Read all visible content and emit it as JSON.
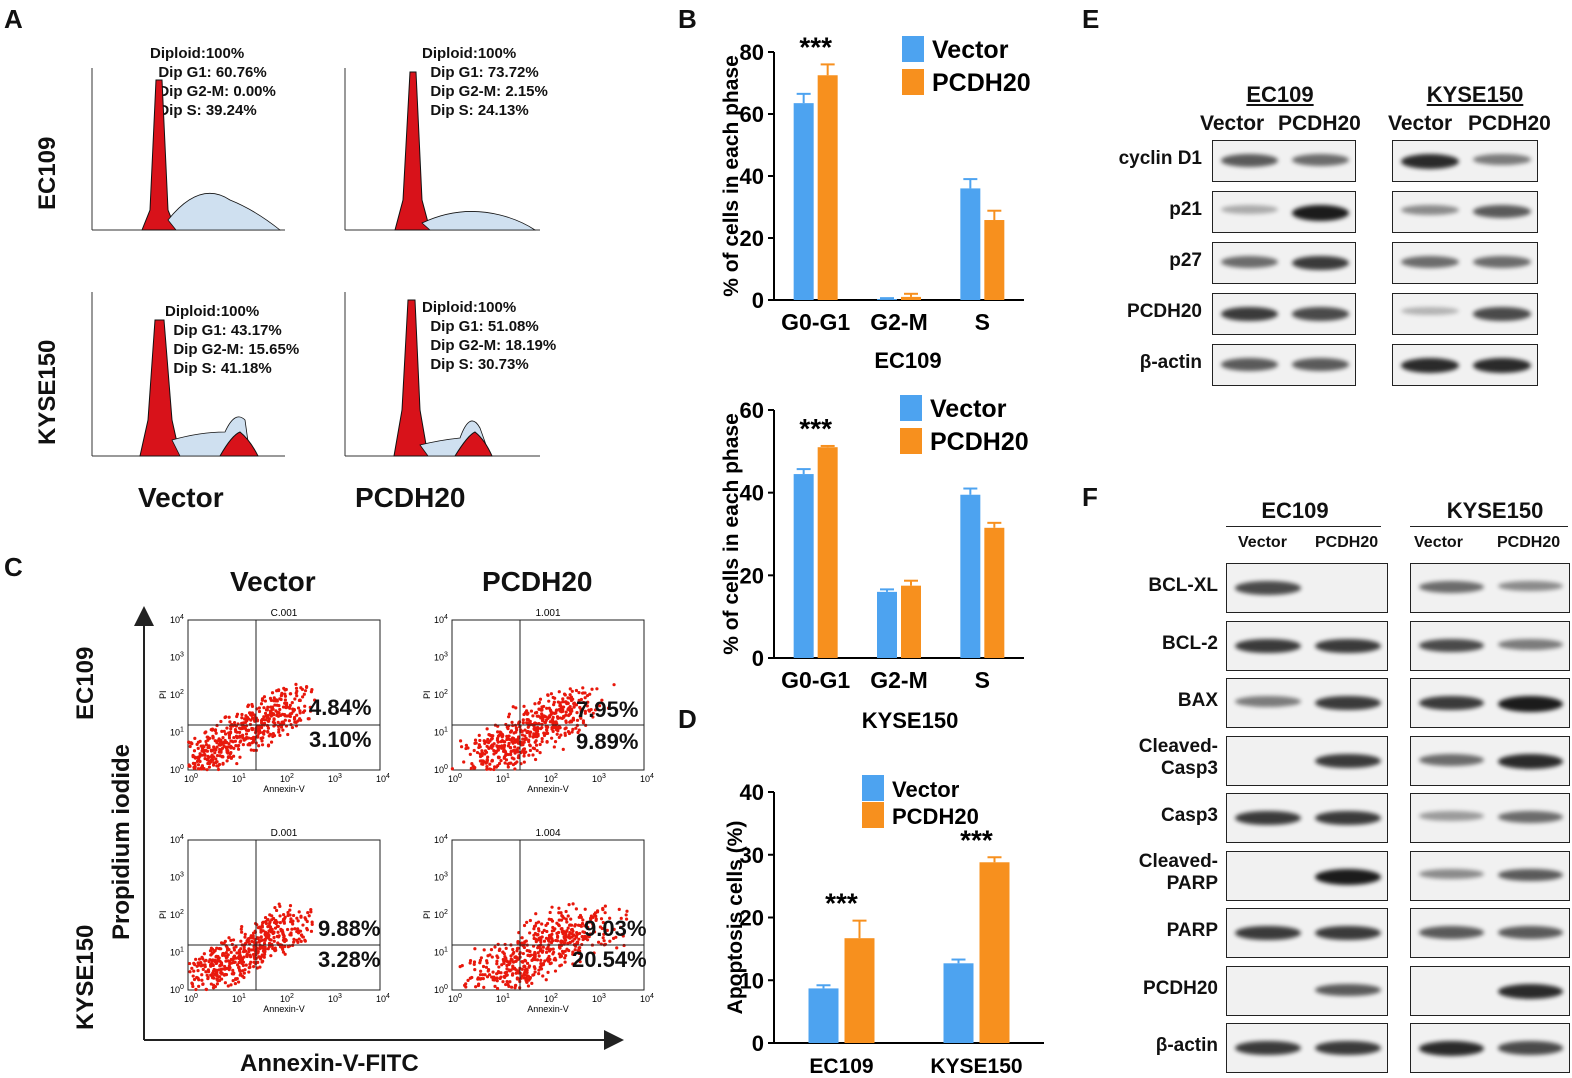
{
  "panels": {
    "A": {
      "letter": "A",
      "row_labels": [
        "EC109",
        "KYSE150"
      ],
      "col_labels": [
        "Vector",
        "PCDH20"
      ],
      "plots": [
        {
          "lines": [
            "Diploid:100%",
            "  Dip G1: 60.76%",
            "  Dip G2-M: 0.00%",
            "  Dip S: 39.24%"
          ]
        },
        {
          "lines": [
            "Diploid:100%",
            "  Dip G1: 73.72%",
            "  Dip G2-M: 2.15%",
            "  Dip S: 24.13%"
          ]
        },
        {
          "lines": [
            "Diploid:100%",
            "  Dip G1: 43.17%",
            "  Dip G2-M: 15.65%",
            "  Dip S: 41.18%"
          ]
        },
        {
          "lines": [
            "Diploid:100%",
            "  Dip G1: 51.08%",
            "  Dip G2-M: 18.19%",
            "  Dip S: 30.73%"
          ]
        }
      ]
    },
    "B": {
      "letter": "B"
    },
    "C": {
      "letter": "C",
      "col_labels": [
        "Vector",
        "PCDH20"
      ],
      "row_labels": [
        "EC109",
        "KYSE150"
      ],
      "y_axis": "Propidium iodide",
      "x_axis": "Annexin-V-FITC",
      "plots": [
        {
          "id": "C.001",
          "upper": "4.84%",
          "lower": "3.10%"
        },
        {
          "id": "1.001",
          "upper": "7.95%",
          "lower": "9.89%"
        },
        {
          "id": "D.001",
          "upper": "9.88%",
          "lower": "3.28%"
        },
        {
          "id": "1.004",
          "upper": "9.03%",
          "lower": "20.54%"
        }
      ],
      "plot_axis_x": "Annexin-V",
      "plot_axis_y": "PI"
    },
    "D": {
      "letter": "D"
    },
    "E": {
      "letter": "E",
      "cell_lines": [
        "EC109",
        "KYSE150"
      ],
      "lanes": [
        "Vector",
        "PCDH20"
      ],
      "proteins": [
        "cyclin D1",
        "p21",
        "p27",
        "PCDH20",
        "β-actin"
      ]
    },
    "F": {
      "letter": "F",
      "cell_lines": [
        "EC109",
        "KYSE150"
      ],
      "lanes": [
        "Vector",
        "PCDH20"
      ],
      "proteins": [
        "BCL-XL",
        "BCL-2",
        "BAX",
        "Cleaved-\nCasp3",
        "Casp3",
        "Cleaved-\nPARP",
        "PARP",
        "PCDH20",
        "β-actin"
      ]
    }
  },
  "chart_data": [
    {
      "type": "bar",
      "title": "EC109",
      "categories": [
        "G0-G1",
        "G2-M",
        "S"
      ],
      "series": [
        {
          "name": "Vector",
          "values": [
            63.5,
            0.3,
            36.0
          ],
          "errors": [
            3.0,
            0.3,
            3.0
          ],
          "color": "#4da3f0"
        },
        {
          "name": "PCDH20",
          "values": [
            72.5,
            1.0,
            25.8
          ],
          "errors": [
            3.5,
            1.0,
            3.0
          ],
          "color": "#f7901e"
        }
      ],
      "ylabel": "% of cells in each phase",
      "ylim": [
        0,
        80
      ],
      "yticks": [
        0,
        20,
        40,
        60,
        80
      ],
      "annotations": [
        {
          "category": "G0-G1",
          "text": "***"
        }
      ]
    },
    {
      "type": "bar",
      "title": "KYSE150",
      "categories": [
        "G0-G1",
        "G2-M",
        "S"
      ],
      "series": [
        {
          "name": "Vector",
          "values": [
            44.5,
            16.0,
            39.5
          ],
          "errors": [
            1.2,
            0.6,
            1.5
          ],
          "color": "#4da3f0"
        },
        {
          "name": "PCDH20",
          "values": [
            51.0,
            17.5,
            31.5
          ],
          "errors": [
            0.3,
            1.2,
            1.2
          ],
          "color": "#f7901e"
        }
      ],
      "ylabel": "% of cells in each phase",
      "ylim": [
        0,
        60
      ],
      "yticks": [
        0,
        20,
        40,
        60
      ],
      "annotations": [
        {
          "category": "G0-G1",
          "text": "***"
        }
      ]
    },
    {
      "type": "bar",
      "title": "",
      "categories": [
        "EC109",
        "KYSE150"
      ],
      "series": [
        {
          "name": "Vector",
          "values": [
            8.7,
            12.7
          ],
          "errors": [
            0.5,
            0.6
          ],
          "color": "#4da3f0"
        },
        {
          "name": "PCDH20",
          "values": [
            16.7,
            28.8
          ],
          "errors": [
            2.8,
            0.8
          ],
          "color": "#f7901e"
        }
      ],
      "ylabel": "Apoptosis cells (%)",
      "ylim": [
        0,
        40
      ],
      "yticks": [
        0,
        10,
        20,
        30,
        40
      ],
      "annotations": [
        {
          "category": "EC109",
          "text": "***"
        },
        {
          "category": "KYSE150",
          "text": "***"
        }
      ]
    }
  ]
}
